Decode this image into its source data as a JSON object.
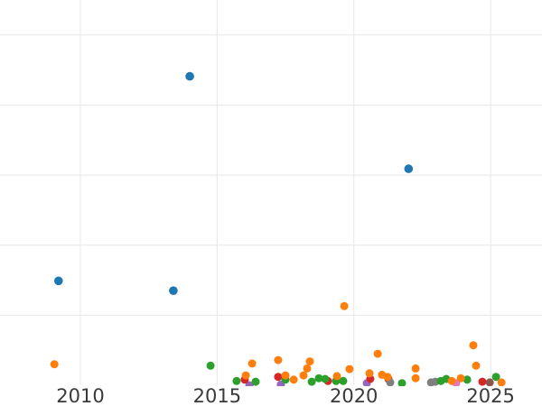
{
  "chart_data": {
    "type": "scatter",
    "title": "",
    "xlabel": "",
    "ylabel": "",
    "grid": true,
    "legend": "none",
    "y_axis_labels": "none (unlabeled y axis, gridline units)",
    "x_ticks": [
      {
        "label": "2010",
        "year": 2010
      },
      {
        "label": "2015",
        "year": 2015
      },
      {
        "label": "2020",
        "year": 2020
      },
      {
        "label": "2025",
        "year": 2025
      }
    ],
    "x_range": [
      2007.06,
      2026.88
    ],
    "y_range_units": [
      0,
      5.5
    ],
    "y_gridline_units": [
      1,
      2,
      3,
      4,
      5
    ],
    "palette": {
      "blue": "#1f77b4",
      "orange": "#ff7f0e",
      "green": "#2ca02c",
      "red": "#d62728",
      "purple": "#9467bd",
      "gray": "#7f7f7f",
      "pink": "#e377c2",
      "brown": "#8c564b"
    },
    "series": [
      {
        "name": "purple",
        "color": "#9467bd",
        "marker_radius": 4.5,
        "points": [
          [
            2016.18,
            0.0
          ],
          [
            2017.33,
            0.01
          ],
          [
            2020.47,
            0.03
          ]
        ]
      },
      {
        "name": "red",
        "color": "#d62728",
        "marker_radius": 4.5,
        "points": [
          [
            2016.01,
            0.08
          ],
          [
            2017.23,
            0.12
          ],
          [
            2019.05,
            0.06
          ],
          [
            2020.6,
            0.09
          ],
          [
            2021.26,
            0.09
          ],
          [
            2024.7,
            0.05
          ]
        ]
      },
      {
        "name": "gray",
        "color": "#7f7f7f",
        "marker_radius": 4.5,
        "points": [
          [
            2021.33,
            0.04
          ],
          [
            2022.82,
            0.04
          ],
          [
            2022.98,
            0.05
          ]
        ]
      },
      {
        "name": "brown",
        "color": "#8c564b",
        "marker_radius": 4.5,
        "points": [
          [
            2024.97,
            0.04
          ]
        ]
      },
      {
        "name": "pink",
        "color": "#e377c2",
        "marker_radius": 4.5,
        "points": [
          [
            2023.74,
            0.03
          ]
        ]
      },
      {
        "name": "green",
        "color": "#2ca02c",
        "marker_radius": 4.5,
        "points": [
          [
            2014.76,
            0.28
          ],
          [
            2015.71,
            0.06
          ],
          [
            2016.41,
            0.05
          ],
          [
            2017.5,
            0.08
          ],
          [
            2018.46,
            0.05
          ],
          [
            2018.72,
            0.1
          ],
          [
            2018.95,
            0.09
          ],
          [
            2019.35,
            0.06
          ],
          [
            2019.61,
            0.06
          ],
          [
            2021.76,
            0.03
          ],
          [
            2023.18,
            0.06
          ],
          [
            2023.38,
            0.09
          ],
          [
            2024.14,
            0.08
          ],
          [
            2025.2,
            0.12
          ]
        ]
      },
      {
        "name": "orange",
        "color": "#ff7f0e",
        "marker_radius": 4.5,
        "points": [
          [
            2009.05,
            0.3
          ],
          [
            2019.65,
            1.13
          ],
          [
            2016.05,
            0.14
          ],
          [
            2016.28,
            0.31
          ],
          [
            2017.23,
            0.36
          ],
          [
            2017.5,
            0.14
          ],
          [
            2017.8,
            0.08
          ],
          [
            2018.16,
            0.14
          ],
          [
            2018.29,
            0.24
          ],
          [
            2018.39,
            0.34
          ],
          [
            2019.38,
            0.13
          ],
          [
            2019.84,
            0.23
          ],
          [
            2020.57,
            0.17
          ],
          [
            2020.87,
            0.45
          ],
          [
            2021.03,
            0.15
          ],
          [
            2021.23,
            0.12
          ],
          [
            2022.26,
            0.24
          ],
          [
            2022.26,
            0.1
          ],
          [
            2023.58,
            0.06
          ],
          [
            2023.91,
            0.1
          ],
          [
            2024.37,
            0.57
          ],
          [
            2024.47,
            0.28
          ],
          [
            2025.4,
            0.04
          ]
        ]
      },
      {
        "name": "blue",
        "color": "#1f77b4",
        "marker_radius": 4.8,
        "points": [
          [
            2014.0,
            4.41
          ],
          [
            2022.0,
            3.09
          ],
          [
            2009.2,
            1.49
          ],
          [
            2013.4,
            1.35
          ]
        ]
      }
    ]
  }
}
